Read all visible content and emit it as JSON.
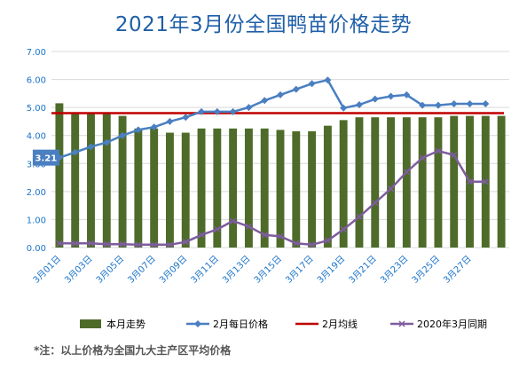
{
  "title": "2021年3月份全国鸭苗价格走势",
  "footnote": "*注：以上价格为全国九大主产区平均价格",
  "chart_data": {
    "type": "bar",
    "y_ticks": [
      "0.00",
      "1.00",
      "2.00",
      "3.00",
      "4.00",
      "5.00",
      "6.00",
      "7.00"
    ],
    "ylim": [
      0,
      7
    ],
    "grid": true,
    "legend_position": "bottom",
    "x_labels": [
      "3月01日",
      "3月03日",
      "3月05日",
      "3月07日",
      "3月09日",
      "3月11日",
      "3月13日",
      "3月15日",
      "3月17日",
      "3月19日",
      "3月21日",
      "3月23日",
      "3月25日",
      "3月27日"
    ],
    "annotation": "3.21",
    "series": [
      {
        "name": "本月走势",
        "type": "bar",
        "color": "#4e6b2a",
        "values": [
          5.15,
          4.8,
          4.8,
          4.8,
          4.7,
          4.25,
          4.25,
          4.1,
          4.1,
          4.25,
          4.25,
          4.25,
          4.25,
          4.25,
          4.2,
          4.15,
          4.15,
          4.35,
          4.55,
          4.65,
          4.65,
          4.65,
          4.65,
          4.65,
          4.65,
          4.7,
          4.7,
          4.7,
          4.7
        ]
      },
      {
        "name": "2月每日价格",
        "type": "line",
        "color": "#4a7fc1",
        "values": [
          3.21,
          3.4,
          3.6,
          3.75,
          4.0,
          4.2,
          4.3,
          4.5,
          4.65,
          4.85,
          4.85,
          4.85,
          5.0,
          5.25,
          5.45,
          5.65,
          5.85,
          5.98,
          4.98,
          5.1,
          5.3,
          5.4,
          5.45,
          5.08,
          5.08,
          5.13,
          5.13,
          5.13
        ]
      },
      {
        "name": "2月均线",
        "type": "line",
        "color": "#c00000",
        "value": 4.8
      },
      {
        "name": "2020年3月同期",
        "type": "line",
        "color": "#7e5c9e",
        "values": [
          0.15,
          0.15,
          0.15,
          0.12,
          0.12,
          0.1,
          0.1,
          0.1,
          0.2,
          0.45,
          0.65,
          0.95,
          0.75,
          0.45,
          0.4,
          0.15,
          0.1,
          0.25,
          0.65,
          1.1,
          1.6,
          2.1,
          2.7,
          3.2,
          3.45,
          3.3,
          2.35,
          2.35
        ]
      }
    ]
  }
}
